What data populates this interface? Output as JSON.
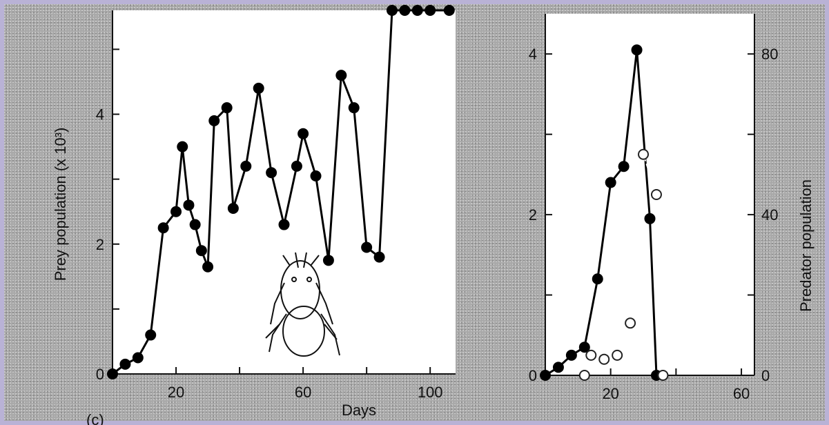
{
  "chart_data": [
    {
      "type": "line",
      "panel": "left",
      "xlabel": "Days",
      "ylabel": "Prey population (x 10³)",
      "xlim": [
        0,
        108
      ],
      "ylim": [
        0,
        5.6
      ],
      "xticks": [
        20,
        40,
        60,
        80,
        100
      ],
      "xtick_labels": [
        "20",
        "",
        "60",
        "",
        "100"
      ],
      "yticks": [
        0,
        1,
        2,
        3,
        4,
        5
      ],
      "ytick_labels": [
        "0",
        "",
        "2",
        "",
        "4",
        ""
      ],
      "series": [
        {
          "marker": "filled-circle",
          "x": [
            0,
            4,
            8,
            12,
            16,
            20,
            22,
            24,
            26,
            28,
            30,
            32,
            36,
            38,
            42,
            46,
            50,
            54,
            58,
            60,
            64,
            68,
            72,
            76,
            80,
            84,
            88,
            92,
            96,
            100,
            106
          ],
          "y": [
            0.0,
            0.15,
            0.25,
            0.6,
            2.25,
            2.5,
            3.5,
            2.6,
            2.3,
            1.9,
            1.65,
            3.9,
            4.1,
            2.55,
            3.2,
            4.4,
            3.1,
            2.3,
            3.2,
            3.7,
            3.05,
            1.75,
            4.6,
            4.1,
            1.95,
            1.8,
            5.6,
            5.6,
            5.6,
            5.6,
            5.6
          ]
        }
      ]
    },
    {
      "type": "line",
      "panel": "right",
      "xlim": [
        0,
        64
      ],
      "ylim": [
        0,
        4.5
      ],
      "xticks": [
        20,
        40,
        60
      ],
      "xtick_labels": [
        "20",
        "",
        "60"
      ],
      "yticks": [
        0,
        1,
        2,
        3,
        4
      ],
      "ytick_labels": [
        "0",
        "",
        "2",
        "",
        "4"
      ],
      "y2label": "Predator population",
      "y2lim": [
        0,
        90
      ],
      "y2ticks": [
        0,
        20,
        40,
        60,
        80
      ],
      "y2tick_labels": [
        "0",
        "",
        "40",
        "",
        "80"
      ],
      "series": [
        {
          "axis": "left",
          "marker": "filled-circle",
          "x": [
            0,
            4,
            8,
            12,
            16,
            20,
            24,
            28,
            32,
            34
          ],
          "y": [
            0.0,
            0.1,
            0.25,
            0.35,
            1.2,
            2.4,
            2.6,
            4.05,
            1.95,
            0.0
          ]
        },
        {
          "axis": "right",
          "marker": "open-circle",
          "line": "dashed",
          "x": [
            12,
            14,
            18,
            22,
            26,
            30,
            34,
            36
          ],
          "y": [
            0,
            5,
            4,
            5,
            13,
            55,
            45,
            0
          ]
        }
      ]
    }
  ],
  "footer": {
    "panel_label": "(c)"
  }
}
